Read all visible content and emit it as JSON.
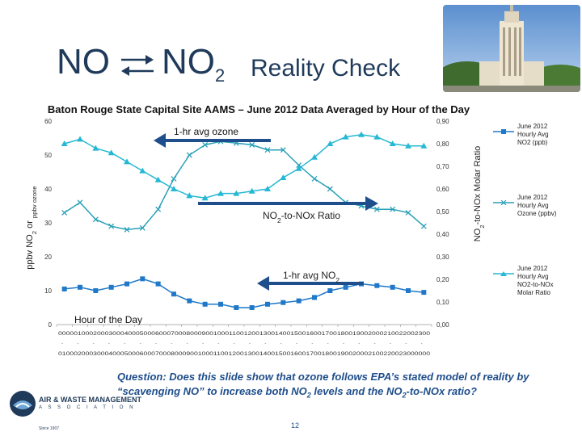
{
  "header": {
    "no_text": "NO",
    "no2_text": "NO",
    "no2_sub": "2",
    "reality_check": "Reality Check"
  },
  "subtitle": "Baton Rouge State Capital Site AAMS – June 2012 Data Averaged by Hour of the Day",
  "chart_data": {
    "type": "line",
    "title": "Baton Rouge State Capital Site AAMS – June 2012 Data Averaged by Hour of the Day",
    "xlabel": "Hour of the Day",
    "ylabel_left_parts": [
      "ppbv NO",
      "2",
      " or ",
      "ppbv ozone"
    ],
    "ylabel_right_parts": [
      "NO",
      "2",
      "-to-NOx Molar Ratio"
    ],
    "categories": [
      "0000",
      "0100",
      "0200",
      "0300",
      "0400",
      "0500",
      "0600",
      "0700",
      "0800",
      "0900",
      "1000",
      "1100",
      "1200",
      "1300",
      "1400",
      "1500",
      "1600",
      "1700",
      "1800",
      "1900",
      "2000",
      "2100",
      "2200",
      "2300"
    ],
    "x_tick_row1": "000001000200030004000500060007000800090010001100120013001400150016001700180019002000210022002300",
    "x_tick_row2": "010002000300040005000600070008000900100011001200130014001500160017001800190020002100220023000000",
    "ylim_left": [
      0,
      60
    ],
    "yticks_left": [
      "0",
      "10",
      "20",
      "30",
      "40",
      "50",
      "60"
    ],
    "ylim_right": [
      0,
      0.9
    ],
    "yticks_right": [
      "0,00",
      "0,10",
      "0,20",
      "0,30",
      "0,40",
      "0,50",
      "0,60",
      "0,70",
      "0,80",
      "0,90"
    ],
    "series": [
      {
        "name": "June 2012 Hourly Avg NO2 (ppb)",
        "axis": "left",
        "marker": "square",
        "color": "#1f78c8",
        "values": [
          10.5,
          11.0,
          10.0,
          11.0,
          12.0,
          13.5,
          12.0,
          9.0,
          7.0,
          6.0,
          6.0,
          5.0,
          5.0,
          6.0,
          6.5,
          7.0,
          8.0,
          10.0,
          11.0,
          12.0,
          11.5,
          11.0,
          10.0,
          9.5
        ]
      },
      {
        "name": "June 2012 Hourly Avg Ozone (ppbv)",
        "axis": "left",
        "marker": "x",
        "color": "#2aa0b8",
        "values": [
          33,
          36,
          31,
          29,
          28,
          28.5,
          34,
          43,
          50,
          53,
          54,
          53.5,
          53,
          51.5,
          51.5,
          47,
          43,
          40,
          36,
          35,
          34,
          34,
          33,
          29
        ]
      },
      {
        "name": "June 2012 Hourly Avg NO2-to-NOx Molar Ratio",
        "axis": "right",
        "marker": "triangle",
        "color": "#25b8d4",
        "values": [
          0.8,
          0.82,
          0.78,
          0.76,
          0.72,
          0.68,
          0.64,
          0.6,
          0.57,
          0.56,
          0.58,
          0.58,
          0.59,
          0.6,
          0.65,
          0.69,
          0.74,
          0.8,
          0.83,
          0.84,
          0.83,
          0.8,
          0.79,
          0.79
        ]
      }
    ],
    "annotations": {
      "ozone_arrow_label": "1-hr avg ozone",
      "ratio_arrow_label_parts": [
        "NO",
        "2",
        "-to-NOx Ratio"
      ],
      "no2_arrow_label_parts": [
        "1-hr avg NO",
        "2"
      ]
    },
    "legend": [
      "June 2012 Hourly Avg NO2 (ppb)",
      "June 2012 Hourly Avg Ozone (ppbv)",
      "June 2012 Hourly Avg NO2-to-NOx Molar Ratio"
    ]
  },
  "question_parts": [
    "Question:  Does this slide show that ozone follows EPA’s stated model of reality by “scavenging NO” to increase both NO",
    "2",
    " levels and the NO",
    "2",
    "-to-NOx ratio?"
  ],
  "page_number": "12",
  "logo": {
    "line1": "AIR & WASTE MANAGEMENT",
    "line2": "A S S O C I A T I O N",
    "line3": "Since 1907"
  },
  "colors": {
    "title": "#1f3a5a",
    "no2": "#1f78c8",
    "ozone": "#2aa0b8",
    "ratio": "#25b8d4",
    "arrow": "#1f4e8c",
    "question": "#1f4e8c"
  }
}
